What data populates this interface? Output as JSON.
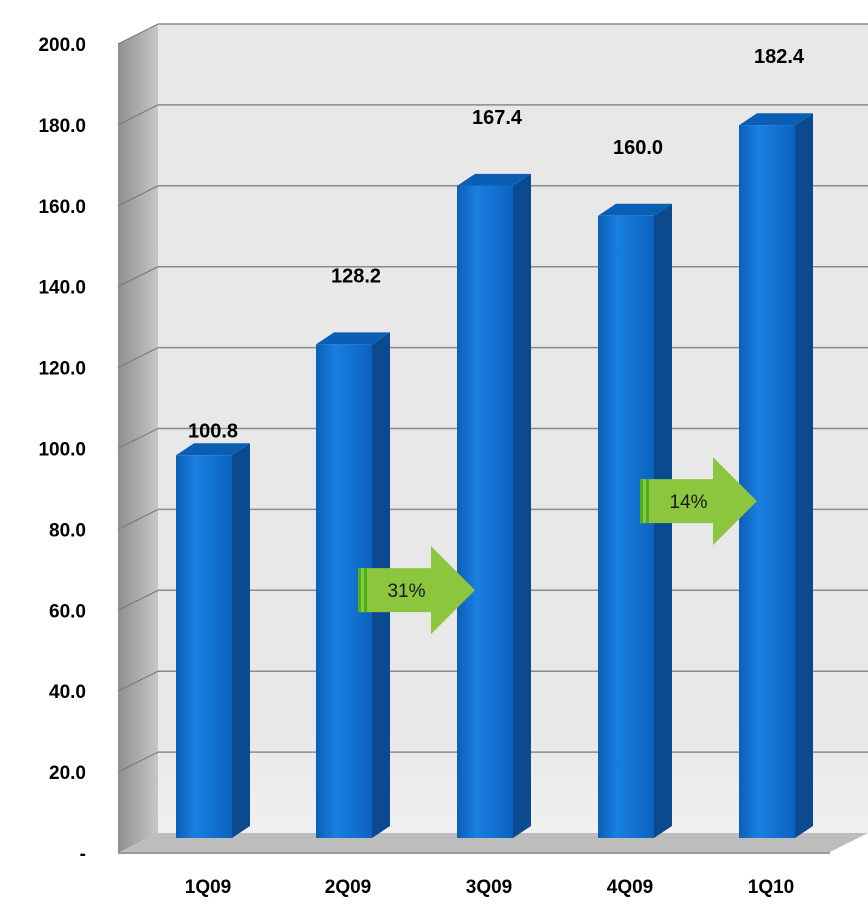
{
  "chart_data": {
    "type": "bar",
    "title": "",
    "xlabel": "",
    "ylabel": "",
    "categories": [
      "1Q09",
      "2Q09",
      "3Q09",
      "4Q09",
      "1Q10"
    ],
    "values": [
      100.8,
      128.2,
      167.4,
      160.0,
      182.4
    ],
    "data_labels": [
      "100.8",
      "128.2",
      "167.4",
      "160.0",
      "182.4"
    ],
    "ylim": [
      0,
      200
    ],
    "yticks": [
      "-",
      "20.0",
      "40.0",
      "60.0",
      "80.0",
      "100.0",
      "120.0",
      "140.0",
      "160.0",
      "180.0",
      "200.0"
    ],
    "grid": true,
    "legend": "none",
    "annotations": [
      {
        "text": "31%",
        "from_category": "2Q09",
        "to_category": "3Q09",
        "arrow_value": 65
      },
      {
        "text": "14%",
        "from_category": "4Q09",
        "to_category": "1Q10",
        "arrow_value": 87
      }
    ],
    "colors": {
      "bar_front": "#0f70cf",
      "bar_side": "#0b4a8f",
      "bar_top": "#0a5fb4",
      "arrow": "#8cc63f",
      "arrow_stripe": "#4cae1c",
      "plot_bg": "#e8e8e8",
      "wall_side": "#a6a6a6",
      "grid": "#8a8a8a"
    }
  }
}
